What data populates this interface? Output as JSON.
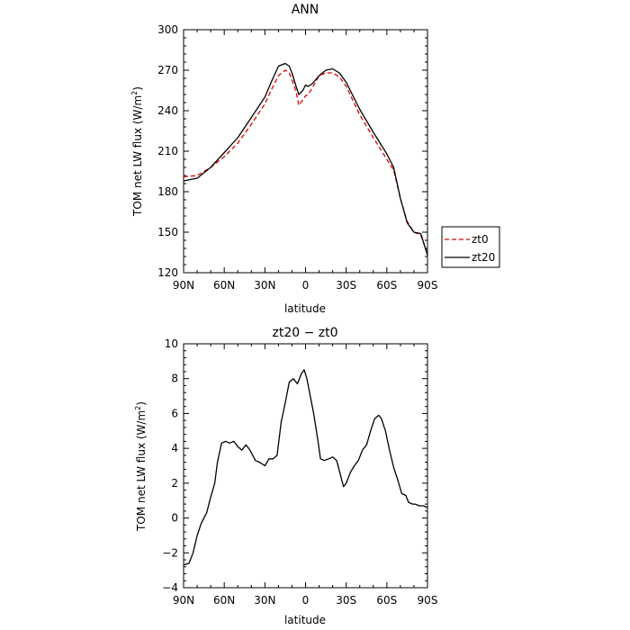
{
  "chart_data": [
    {
      "type": "line",
      "title": "ANN",
      "xlabel": "latitude",
      "ylabel": "TOM net LW flux (W/m",
      "ylabel_superscript": "2",
      "ylabel_suffix": ")",
      "xlim": [
        90,
        -90
      ],
      "ylim": [
        120,
        300
      ],
      "xticks": [
        90,
        60,
        30,
        0,
        -30,
        -60,
        -90
      ],
      "xtick_labels": [
        "90N",
        "60N",
        "30N",
        "0",
        "30S",
        "60S",
        "90S"
      ],
      "yticks": [
        120,
        150,
        180,
        210,
        240,
        270,
        300
      ],
      "ytick_labels": [
        "120",
        "150",
        "180",
        "210",
        "240",
        "270",
        "300"
      ],
      "grid": false,
      "legend_position": "outside-right",
      "series": [
        {
          "name": "zt0",
          "color": "#e00000",
          "dash": "dashed",
          "x": [
            90,
            80,
            70,
            60,
            50,
            40,
            30,
            25,
            20,
            15,
            12,
            10,
            7,
            5,
            2,
            0,
            -2,
            -5,
            -10,
            -15,
            -20,
            -25,
            -30,
            -40,
            -50,
            -60,
            -65,
            -70,
            -75,
            -80,
            -85,
            -90
          ],
          "y": [
            191,
            192,
            198,
            206,
            216,
            230,
            245,
            256,
            266,
            270,
            268,
            263,
            254,
            244,
            248,
            251,
            252,
            257,
            266,
            268,
            268,
            265,
            258,
            237,
            220,
            204,
            196,
            175,
            158,
            150,
            148,
            134
          ]
        },
        {
          "name": "zt20",
          "color": "#000000",
          "dash": "solid",
          "x": [
            90,
            80,
            70,
            60,
            50,
            40,
            30,
            25,
            20,
            15,
            12,
            10,
            7,
            5,
            2,
            0,
            -2,
            -5,
            -10,
            -15,
            -20,
            -25,
            -30,
            -40,
            -50,
            -60,
            -65,
            -70,
            -75,
            -80,
            -85,
            -90
          ],
          "y": [
            188,
            190,
            198,
            209,
            220,
            235,
            250,
            262,
            273,
            275,
            273,
            268,
            258,
            252,
            255,
            259,
            258,
            260,
            266,
            270,
            271,
            268,
            261,
            241,
            224,
            208,
            198,
            175,
            157,
            150,
            149,
            133
          ]
        }
      ]
    },
    {
      "type": "line",
      "title": "zt20 − zt0",
      "xlabel": "latitude",
      "ylabel": "TOM net LW flux (W/m",
      "ylabel_superscript": "2",
      "ylabel_suffix": ")",
      "xlim": [
        90,
        -90
      ],
      "ylim": [
        -4,
        10
      ],
      "xticks": [
        90,
        60,
        30,
        0,
        -30,
        -60,
        -90
      ],
      "xtick_labels": [
        "90N",
        "60N",
        "30N",
        "0",
        "30S",
        "60S",
        "90S"
      ],
      "yticks": [
        -4,
        -2,
        0,
        2,
        4,
        6,
        8,
        10
      ],
      "ytick_labels": [
        "−4",
        "−2",
        "0",
        "2",
        "4",
        "6",
        "8",
        "10"
      ],
      "grid": false,
      "series": [
        {
          "color": "#000000",
          "dash": "solid",
          "x": [
            90,
            86,
            83,
            80,
            77,
            73,
            70,
            67,
            65,
            62,
            59,
            56,
            53,
            50,
            47,
            44,
            41,
            37,
            34,
            30,
            27,
            24,
            21,
            18,
            15,
            12,
            9,
            6,
            3,
            1,
            -1,
            -3,
            -6,
            -9,
            -11,
            -14,
            -17,
            -20,
            -23,
            -26,
            -28,
            -30,
            -33,
            -36,
            -39,
            -42,
            -45,
            -48,
            -51,
            -54,
            -56,
            -59,
            -62,
            -65,
            -68,
            -71,
            -74,
            -76,
            -79,
            -81,
            -84,
            -87,
            -90
          ],
          "y": [
            -2.7,
            -2.6,
            -2.0,
            -1.0,
            -0.3,
            0.3,
            1.2,
            2.0,
            3.2,
            4.3,
            4.4,
            4.3,
            4.4,
            4.1,
            3.9,
            4.2,
            3.9,
            3.3,
            3.2,
            3.0,
            3.4,
            3.4,
            3.6,
            5.5,
            6.6,
            7.8,
            8.0,
            7.7,
            8.3,
            8.5,
            8.0,
            7.2,
            6.0,
            4.5,
            3.4,
            3.3,
            3.4,
            3.5,
            3.3,
            2.4,
            1.8,
            2.0,
            2.6,
            3.0,
            3.3,
            3.9,
            4.2,
            5.0,
            5.7,
            5.9,
            5.7,
            5.0,
            3.9,
            2.9,
            2.2,
            1.4,
            1.3,
            0.9,
            0.8,
            0.8,
            0.7,
            0.7,
            0.6
          ]
        }
      ]
    }
  ]
}
